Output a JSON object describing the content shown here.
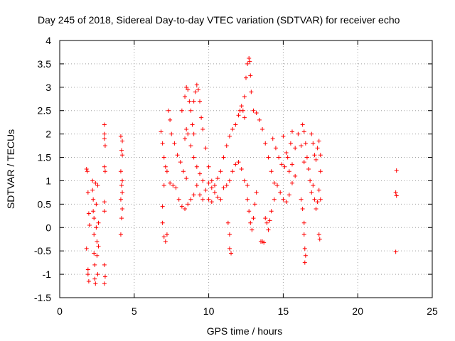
{
  "chart_data": {
    "type": "scatter",
    "title": "Day 245 of 2018, Sidereal Day-to-day VTEC variation (SDTVAR) for receiver echo",
    "xlabel": "GPS time / hours",
    "ylabel": "SDTVAR / TECUs",
    "xlim": [
      0,
      25
    ],
    "ylim": [
      -1.5,
      4
    ],
    "x_ticks": [
      0,
      5,
      10,
      15,
      20,
      25
    ],
    "x_tick_labels": [
      "0",
      "5",
      "10",
      "15",
      "20",
      "25"
    ],
    "y_ticks": [
      -1.5,
      -1,
      -0.5,
      0,
      0.5,
      1,
      1.5,
      2,
      2.5,
      3,
      3.5,
      4
    ],
    "y_tick_labels": [
      "-1.5",
      "-1",
      "-0.5",
      "0",
      "0.5",
      "1",
      "1.5",
      "2",
      "2.5",
      "3",
      "3.5",
      "4"
    ],
    "grid": true,
    "legend": "none",
    "marker": "+",
    "marker_color": "#ff0000",
    "series": [
      {
        "name": "SDTVAR",
        "points": [
          [
            1.8,
            1.25
          ],
          [
            1.85,
            1.2
          ],
          [
            1.9,
            0.75
          ],
          [
            1.95,
            0.3
          ],
          [
            1.8,
            -0.45
          ],
          [
            1.9,
            -0.9
          ],
          [
            1.9,
            -1.0
          ],
          [
            1.95,
            -1.15
          ],
          [
            2.0,
            0.05
          ],
          [
            2.2,
            1.0
          ],
          [
            2.2,
            0.8
          ],
          [
            2.25,
            0.6
          ],
          [
            2.25,
            0.35
          ],
          [
            2.3,
            0.2
          ],
          [
            2.3,
            -0.15
          ],
          [
            2.3,
            -0.55
          ],
          [
            2.35,
            -0.8
          ],
          [
            2.35,
            -1.1
          ],
          [
            2.4,
            -1.2
          ],
          [
            2.4,
            0.95
          ],
          [
            2.45,
            0.5
          ],
          [
            2.45,
            0.0
          ],
          [
            2.5,
            -0.3
          ],
          [
            2.5,
            -0.6
          ],
          [
            2.55,
            -1.0
          ],
          [
            2.55,
            0.9
          ],
          [
            2.6,
            0.1
          ],
          [
            2.6,
            -0.4
          ],
          [
            3.0,
            2.2
          ],
          [
            3.0,
            2.0
          ],
          [
            3.0,
            1.9
          ],
          [
            3.05,
            1.75
          ],
          [
            3.0,
            1.3
          ],
          [
            3.05,
            1.2
          ],
          [
            3.0,
            0.55
          ],
          [
            3.0,
            0.35
          ],
          [
            3.0,
            -0.8
          ],
          [
            3.05,
            -1.05
          ],
          [
            3.0,
            -1.2
          ],
          [
            4.1,
            1.95
          ],
          [
            4.2,
            1.85
          ],
          [
            4.15,
            1.65
          ],
          [
            4.2,
            1.55
          ],
          [
            4.1,
            1.2
          ],
          [
            4.2,
            1.0
          ],
          [
            4.15,
            0.9
          ],
          [
            4.2,
            0.75
          ],
          [
            4.1,
            0.6
          ],
          [
            4.2,
            0.4
          ],
          [
            4.15,
            0.2
          ],
          [
            4.1,
            -0.15
          ],
          [
            6.8,
            2.05
          ],
          [
            6.9,
            1.8
          ],
          [
            7.0,
            1.5
          ],
          [
            7.1,
            1.3
          ],
          [
            7.0,
            0.9
          ],
          [
            6.9,
            0.45
          ],
          [
            6.9,
            0.1
          ],
          [
            7.0,
            -0.2
          ],
          [
            7.1,
            -0.3
          ],
          [
            7.2,
            -0.15
          ],
          [
            7.3,
            2.5
          ],
          [
            7.4,
            2.3
          ],
          [
            7.5,
            2.0
          ],
          [
            7.7,
            1.8
          ],
          [
            7.9,
            1.55
          ],
          [
            8.1,
            1.4
          ],
          [
            8.3,
            1.2
          ],
          [
            8.5,
            1.05
          ],
          [
            7.2,
            1.2
          ],
          [
            7.4,
            0.95
          ],
          [
            7.6,
            0.9
          ],
          [
            7.8,
            0.85
          ],
          [
            8.0,
            0.6
          ],
          [
            8.2,
            0.45
          ],
          [
            8.4,
            0.4
          ],
          [
            8.6,
            0.5
          ],
          [
            8.8,
            0.6
          ],
          [
            9.0,
            0.7
          ],
          [
            8.2,
            2.5
          ],
          [
            8.4,
            2.8
          ],
          [
            8.5,
            3.0
          ],
          [
            8.6,
            2.95
          ],
          [
            8.7,
            2.7
          ],
          [
            8.8,
            2.5
          ],
          [
            8.9,
            2.2
          ],
          [
            9.0,
            2.0
          ],
          [
            8.4,
            1.9
          ],
          [
            8.5,
            2.1
          ],
          [
            8.6,
            2.0
          ],
          [
            8.8,
            1.75
          ],
          [
            9.0,
            1.5
          ],
          [
            9.2,
            1.3
          ],
          [
            9.4,
            1.15
          ],
          [
            9.6,
            1.0
          ],
          [
            9.0,
            2.7
          ],
          [
            9.1,
            2.9
          ],
          [
            9.2,
            3.05
          ],
          [
            9.3,
            2.95
          ],
          [
            9.4,
            2.7
          ],
          [
            9.5,
            2.35
          ],
          [
            9.6,
            2.1
          ],
          [
            9.8,
            1.7
          ],
          [
            10.0,
            1.3
          ],
          [
            10.2,
            1.0
          ],
          [
            9.2,
            0.9
          ],
          [
            9.4,
            0.7
          ],
          [
            9.6,
            0.6
          ],
          [
            9.8,
            0.8
          ],
          [
            10.0,
            0.95
          ],
          [
            10.2,
            0.85
          ],
          [
            10.4,
            0.75
          ],
          [
            10.6,
            0.65
          ],
          [
            10.8,
            0.6
          ],
          [
            10.0,
            0.6
          ],
          [
            10.2,
            0.55
          ],
          [
            10.4,
            0.9
          ],
          [
            10.6,
            1.05
          ],
          [
            10.8,
            1.2
          ],
          [
            11.0,
            1.5
          ],
          [
            11.2,
            1.75
          ],
          [
            11.4,
            1.95
          ],
          [
            11.6,
            2.1
          ],
          [
            11.0,
            0.85
          ],
          [
            11.2,
            0.9
          ],
          [
            11.4,
            1.0
          ],
          [
            11.6,
            1.2
          ],
          [
            11.8,
            1.35
          ],
          [
            12.0,
            1.4
          ],
          [
            12.2,
            1.25
          ],
          [
            12.4,
            1.0
          ],
          [
            12.6,
            0.9
          ],
          [
            11.4,
            -0.15
          ],
          [
            11.4,
            -0.45
          ],
          [
            11.5,
            -0.55
          ],
          [
            11.3,
            0.1
          ],
          [
            11.8,
            2.2
          ],
          [
            12.0,
            2.4
          ],
          [
            12.1,
            2.5
          ],
          [
            12.2,
            2.6
          ],
          [
            12.3,
            2.5
          ],
          [
            12.4,
            2.35
          ],
          [
            12.4,
            2.8
          ],
          [
            12.5,
            3.2
          ],
          [
            12.6,
            3.5
          ],
          [
            12.7,
            3.62
          ],
          [
            12.75,
            3.55
          ],
          [
            12.8,
            3.25
          ],
          [
            12.85,
            2.9
          ],
          [
            12.6,
            0.6
          ],
          [
            12.7,
            0.35
          ],
          [
            12.8,
            0.1
          ],
          [
            12.9,
            -0.05
          ],
          [
            13.0,
            0.2
          ],
          [
            13.1,
            0.5
          ],
          [
            13.2,
            0.75
          ],
          [
            13.0,
            2.5
          ],
          [
            13.2,
            2.45
          ],
          [
            13.4,
            2.3
          ],
          [
            13.6,
            2.1
          ],
          [
            13.8,
            1.8
          ],
          [
            14.0,
            1.5
          ],
          [
            14.2,
            1.2
          ],
          [
            14.4,
            0.95
          ],
          [
            13.5,
            -0.3
          ],
          [
            13.6,
            -0.3
          ],
          [
            13.7,
            -0.32
          ],
          [
            13.8,
            0.2
          ],
          [
            13.9,
            0.1
          ],
          [
            14.0,
            -0.05
          ],
          [
            14.1,
            0.15
          ],
          [
            14.2,
            0.35
          ],
          [
            14.4,
            0.6
          ],
          [
            14.3,
            1.9
          ],
          [
            14.5,
            1.7
          ],
          [
            14.7,
            1.5
          ],
          [
            14.9,
            1.35
          ],
          [
            15.1,
            1.3
          ],
          [
            15.3,
            1.5
          ],
          [
            15.5,
            1.8
          ],
          [
            15.6,
            2.05
          ],
          [
            14.6,
            0.9
          ],
          [
            14.8,
            0.75
          ],
          [
            15.0,
            0.6
          ],
          [
            15.2,
            0.55
          ],
          [
            15.4,
            0.7
          ],
          [
            15.6,
            0.95
          ],
          [
            15.8,
            1.1
          ],
          [
            15.0,
            1.95
          ],
          [
            15.2,
            1.6
          ],
          [
            15.4,
            1.2
          ],
          [
            15.6,
            1.35
          ],
          [
            15.8,
            1.7
          ],
          [
            16.0,
            2.0
          ],
          [
            16.2,
            1.75
          ],
          [
            16.4,
            1.4
          ],
          [
            16.3,
            2.2
          ],
          [
            16.4,
            2.05
          ],
          [
            16.5,
            1.8
          ],
          [
            16.6,
            1.5
          ],
          [
            16.7,
            1.25
          ],
          [
            16.8,
            1.0
          ],
          [
            16.9,
            0.75
          ],
          [
            16.2,
            0.6
          ],
          [
            16.3,
            0.4
          ],
          [
            16.4,
            0.1
          ],
          [
            16.4,
            -0.15
          ],
          [
            16.45,
            -0.45
          ],
          [
            16.5,
            -0.6
          ],
          [
            16.45,
            -0.75
          ],
          [
            16.9,
            2.0
          ],
          [
            17.0,
            1.8
          ],
          [
            17.1,
            1.55
          ],
          [
            17.2,
            1.45
          ],
          [
            17.3,
            1.7
          ],
          [
            17.4,
            1.85
          ],
          [
            17.5,
            1.55
          ],
          [
            17.5,
            1.2
          ],
          [
            17.0,
            0.9
          ],
          [
            17.1,
            0.6
          ],
          [
            17.2,
            0.4
          ],
          [
            17.3,
            0.55
          ],
          [
            17.4,
            0.8
          ],
          [
            17.5,
            0.6
          ],
          [
            17.4,
            -0.15
          ],
          [
            17.45,
            -0.25
          ],
          [
            22.6,
            1.22
          ],
          [
            22.55,
            0.75
          ],
          [
            22.6,
            0.68
          ],
          [
            22.55,
            -0.52
          ]
        ]
      }
    ]
  }
}
